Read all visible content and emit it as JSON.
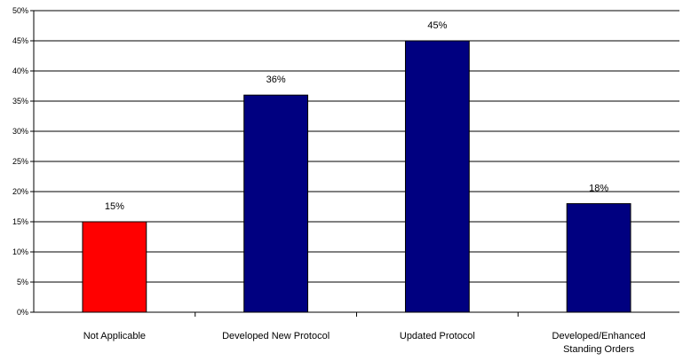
{
  "chart_data": {
    "type": "bar",
    "categories": [
      "Not Applicable",
      "Developed New Protocol",
      "Updated Protocol",
      "Developed/Enhanced Standing Orders"
    ],
    "category_lines": [
      [
        "Not Applicable"
      ],
      [
        "Developed New Protocol"
      ],
      [
        "Updated Protocol"
      ],
      [
        "Developed/Enhanced",
        "Standing Orders"
      ]
    ],
    "values": [
      15,
      36,
      45,
      18
    ],
    "data_labels": [
      "15%",
      "36%",
      "45%",
      "18%"
    ],
    "bar_colors": [
      "#ff0000",
      "#000080",
      "#000080",
      "#000080"
    ],
    "yticks": [
      "0%",
      "5%",
      "10%",
      "15%",
      "20%",
      "25%",
      "30%",
      "35%",
      "40%",
      "45%",
      "50%"
    ],
    "ylim": [
      0,
      50
    ],
    "grid": true,
    "legend": "none",
    "title": "",
    "xlabel": "",
    "ylabel": ""
  }
}
